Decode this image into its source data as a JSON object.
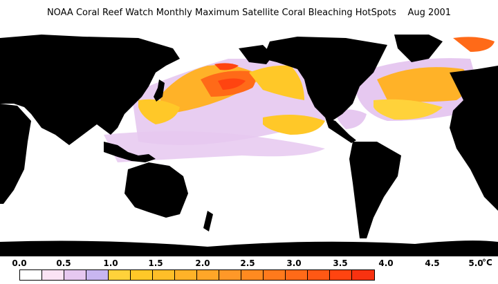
{
  "title": "NOAA Coral Reef Watch Monthly Maximum Satellite Coral Bleaching HotSpots    Aug 2001",
  "legend": {
    "ticks": [
      "0.0",
      "0.5",
      "1.0",
      "1.5",
      "2.0",
      "2.5",
      "3.0",
      "3.5",
      "4.0",
      "4.5",
      "5.0"
    ],
    "unit": "°C",
    "colors": [
      "#ffffff",
      "#fbe3f4",
      "#e6c8f0",
      "#c8b6f0",
      "#ffd23a",
      "#ffc828",
      "#ffbe28",
      "#ffb228",
      "#ffa628",
      "#ff9828",
      "#ff8a20",
      "#ff7a1c",
      "#ff6a18",
      "#ff5814",
      "#ff4410",
      "#f83210"
    ]
  },
  "colors": {
    "land": "#000000",
    "ocean_zero": "#ffffff",
    "hotspot_low": "#e6c8f0",
    "hotspot_mid": "#ffb228",
    "hotspot_high": "#ff4410"
  }
}
